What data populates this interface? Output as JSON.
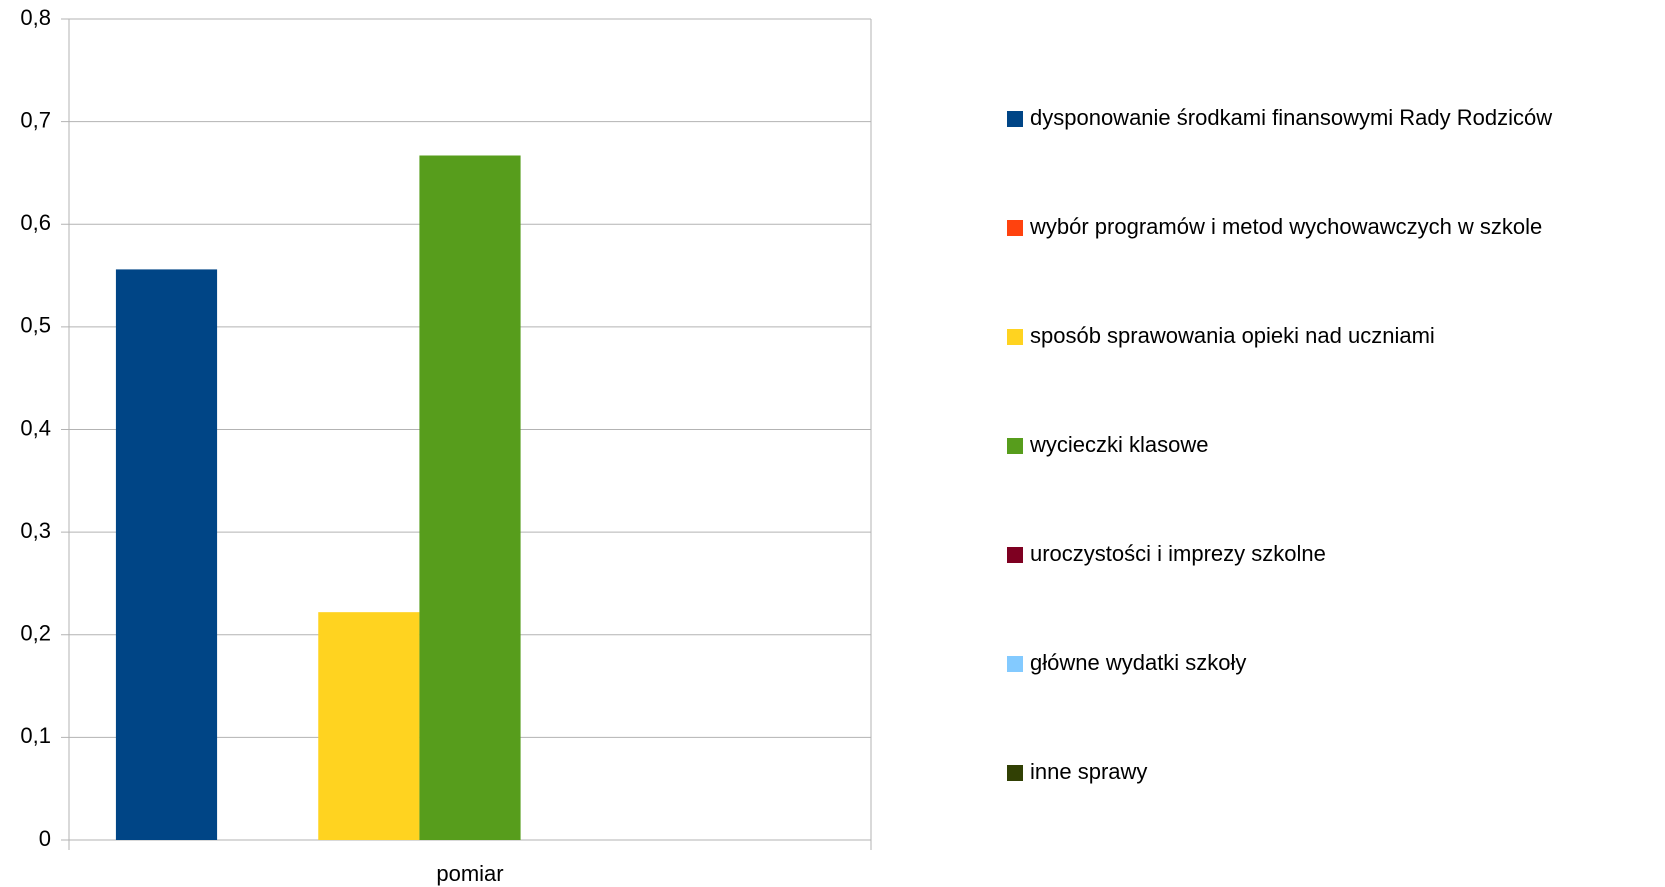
{
  "chart_data": {
    "type": "bar",
    "categories": [
      "pomiar"
    ],
    "series": [
      {
        "name": "dysponowanie środkami finansowymi Rady Rodziców",
        "color": "#004586",
        "values": [
          0.556
        ]
      },
      {
        "name": "wybór programów i metod wychowawczych w szkole",
        "color": "#ff420e",
        "values": [
          0
        ]
      },
      {
        "name": "sposób sprawowania opieki nad uczniami",
        "color": "#ffd320",
        "values": [
          0.222
        ]
      },
      {
        "name": "wycieczki klasowe",
        "color": "#579d1c",
        "values": [
          0.667
        ]
      },
      {
        "name": "uroczystości i imprezy szkolne",
        "color": "#7e0021",
        "values": [
          0
        ]
      },
      {
        "name": "główne wydatki szkoły",
        "color": "#83caff",
        "values": [
          0
        ]
      },
      {
        "name": "inne sprawy",
        "color": "#314004",
        "values": [
          0
        ]
      }
    ],
    "ylim": [
      0,
      0.8
    ],
    "yticks": [
      0,
      {
        "value": 0.1,
        "label": "0,1"
      },
      {
        "value": 0.2,
        "label": "0,2"
      },
      {
        "value": 0.3,
        "label": "0,3"
      },
      {
        "value": 0.4,
        "label": "0,4"
      },
      {
        "value": 0.5,
        "label": "0,5"
      },
      {
        "value": 0.6,
        "label": "0,6"
      },
      {
        "value": 0.7,
        "label": "0,7"
      },
      {
        "value": 0.8,
        "label": "0,8"
      }
    ],
    "grid": true,
    "legend": "right"
  }
}
